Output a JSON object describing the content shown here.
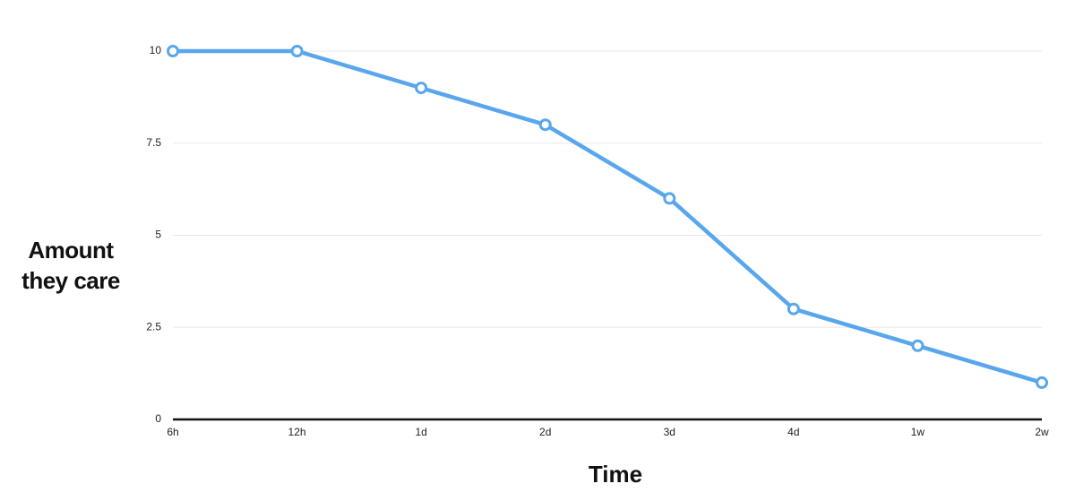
{
  "chart_data": {
    "type": "line",
    "x_label": "Time",
    "y_label": "Amount they care",
    "categories": [
      "6h",
      "12h",
      "1d",
      "2d",
      "3d",
      "4d",
      "1w",
      "2w"
    ],
    "series": [
      {
        "color": "#58a6ec",
        "values": [
          10,
          10,
          9,
          8,
          6,
          3,
          2,
          1
        ]
      }
    ],
    "ylim": [
      0,
      10
    ],
    "yticks": [
      0,
      2.5,
      5,
      7.5,
      10
    ],
    "grid": true
  }
}
